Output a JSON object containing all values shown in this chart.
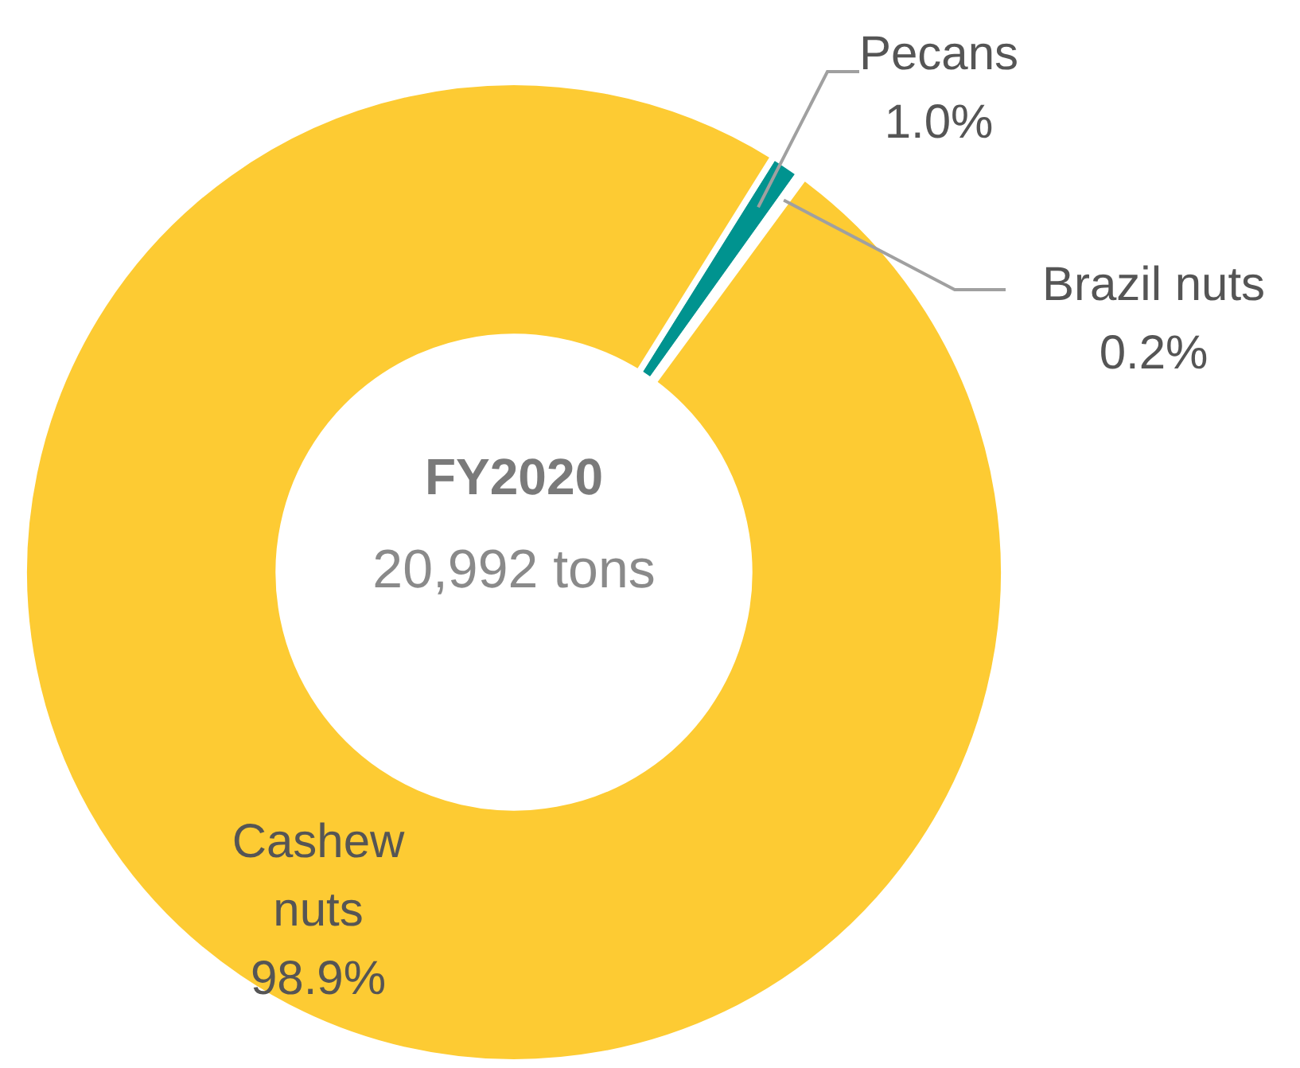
{
  "chart_data": {
    "type": "donut",
    "title": "FY2020",
    "subtitle": "20,992 tons",
    "categories": [
      "Pecans",
      "Brazil nuts",
      "Cashew nuts"
    ],
    "values": [
      1.0,
      0.2,
      98.9
    ],
    "colors": [
      "#00938f",
      "#ffffff",
      "#fdcb33"
    ],
    "value_labels": [
      "1.0%",
      "0.2%",
      "98.9%"
    ],
    "legend": false
  }
}
